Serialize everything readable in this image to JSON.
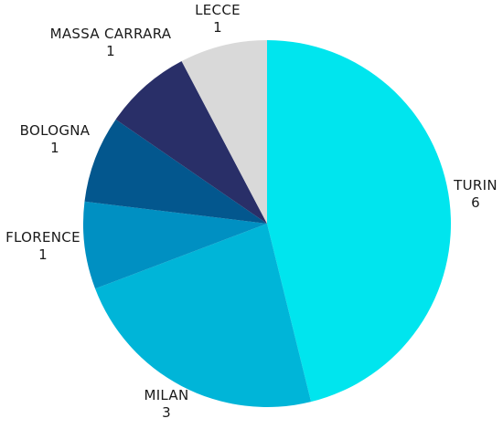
{
  "chart_data": {
    "type": "pie",
    "title": "",
    "start": "12 o'clock",
    "direction": "clockwise",
    "legend": "none",
    "slices": [
      {
        "label": "TURIN",
        "value": 6,
        "color": "#00E5EE"
      },
      {
        "label": "MILAN",
        "value": 3,
        "color": "#00B5D8"
      },
      {
        "label": "FLORENCE",
        "value": 1,
        "color": "#0090C2"
      },
      {
        "label": "BOLOGNA",
        "value": 1,
        "color": "#03578E"
      },
      {
        "label": "MASSA CARRARA",
        "value": 1,
        "color": "#292F68"
      },
      {
        "label": "LECCE",
        "value": 1,
        "color": "#D9D9D9"
      }
    ]
  }
}
